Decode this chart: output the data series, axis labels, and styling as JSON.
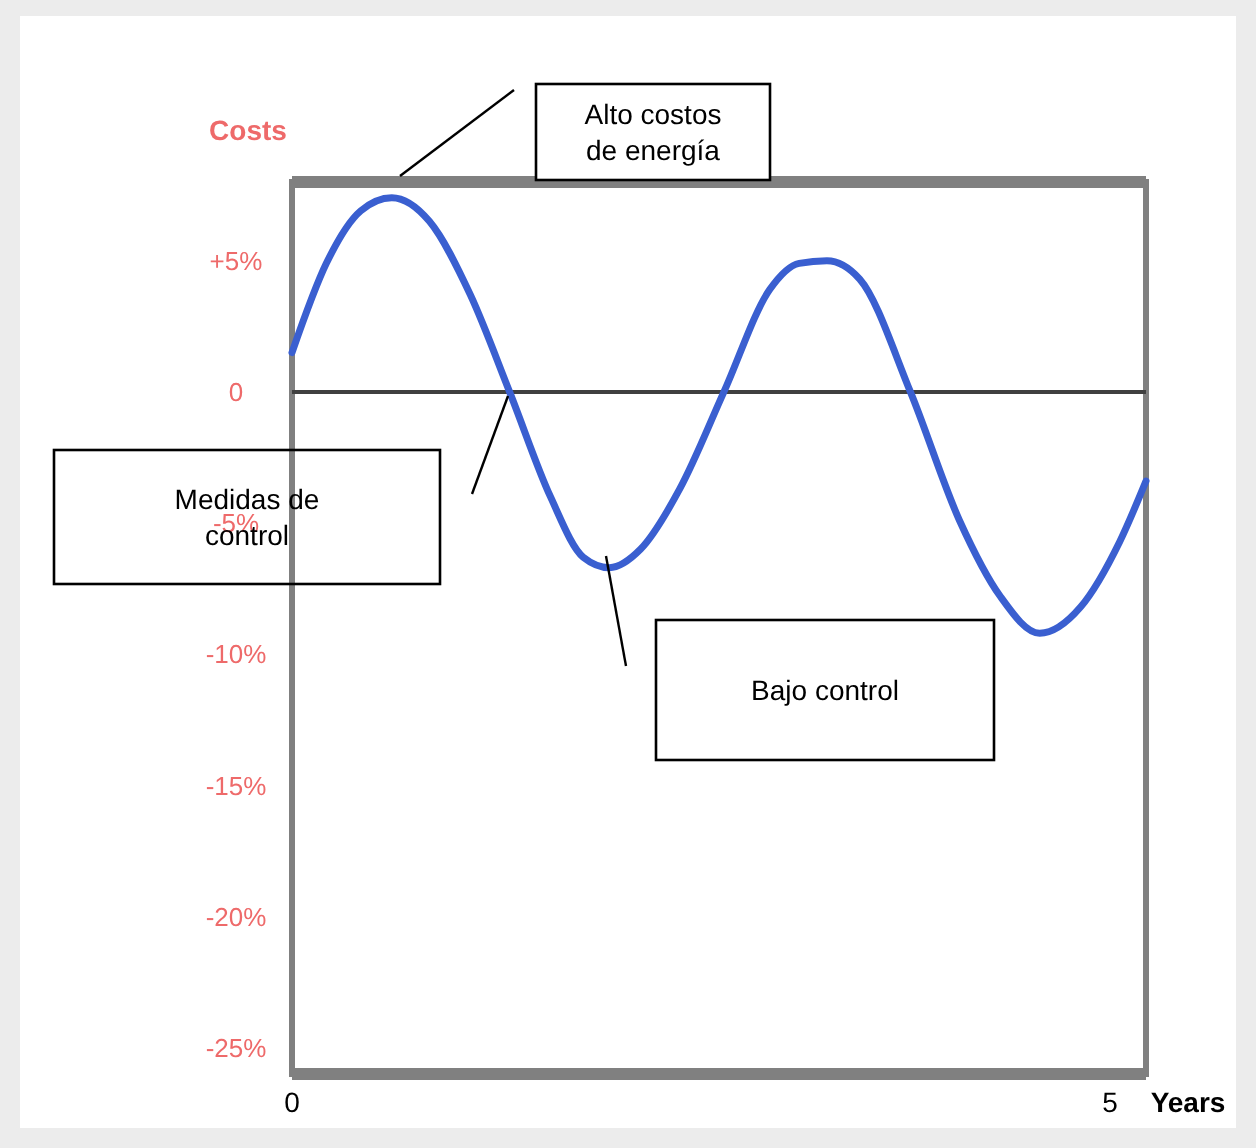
{
  "chart_data": {
    "type": "line",
    "ylabel": "Costs",
    "xlabel": "Years",
    "x": [
      0,
      0.21,
      0.42,
      0.61,
      0.84,
      1.09,
      1.33,
      1.58,
      1.78,
      1.94,
      2.13,
      2.37,
      2.64,
      2.92,
      3.1,
      3.27,
      3.47,
      3.78,
      4.08,
      4.33,
      4.57,
      4.82,
      5.06,
      5.22
    ],
    "series": [
      {
        "color": "#3a5fd0",
        "values": [
          1.5,
          4.9,
          6.9,
          7.4,
          6.5,
          3.7,
          0,
          -4.0,
          -6.3,
          -6.7,
          -6.0,
          -3.7,
          0,
          3.9,
          4.9,
          5.0,
          4.3,
          0,
          -4.9,
          -7.8,
          -9.2,
          -8.2,
          -5.7,
          -3.4
        ]
      }
    ],
    "xlim": [
      0,
      5.22
    ],
    "ylim": [
      -26,
      8
    ],
    "xticks": [
      0,
      5
    ],
    "yticks": [
      {
        "value": 5,
        "label": "+5%"
      },
      0,
      {
        "value": -5,
        "label": "-5%"
      },
      {
        "value": -10,
        "label": "-10%"
      },
      {
        "value": -15,
        "label": "-15%"
      },
      {
        "value": -20,
        "label": "-20%"
      },
      {
        "value": -25,
        "label": "-25%"
      }
    ],
    "ref_lines": [
      {
        "axis": "y",
        "value": 0,
        "color": "#404040"
      }
    ],
    "annotations": [
      "Alto costos de energía",
      "Medidas de control",
      "Bajo control"
    ],
    "line_style": "solid"
  }
}
